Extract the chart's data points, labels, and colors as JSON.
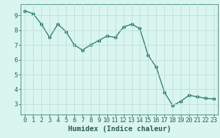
{
  "x": [
    0,
    1,
    2,
    3,
    4,
    5,
    6,
    7,
    8,
    9,
    10,
    11,
    12,
    13,
    14,
    15,
    16,
    17,
    18,
    19,
    20,
    21,
    22,
    23
  ],
  "y": [
    9.3,
    9.1,
    8.4,
    7.5,
    8.4,
    7.9,
    7.0,
    6.65,
    7.0,
    7.3,
    7.6,
    7.5,
    8.2,
    8.4,
    8.1,
    6.3,
    5.5,
    3.8,
    2.9,
    3.2,
    3.6,
    3.5,
    3.4,
    3.35
  ],
  "line_color": "#2e7d6e",
  "marker": "o",
  "markersize": 2.5,
  "linewidth": 1.0,
  "xlabel": "Humidex (Indice chaleur)",
  "xlim": [
    -0.5,
    23.5
  ],
  "ylim": [
    2.3,
    9.75
  ],
  "yticks": [
    3,
    4,
    5,
    6,
    7,
    8,
    9
  ],
  "xticks": [
    0,
    1,
    2,
    3,
    4,
    5,
    6,
    7,
    8,
    9,
    10,
    11,
    12,
    13,
    14,
    15,
    16,
    17,
    18,
    19,
    20,
    21,
    22,
    23
  ],
  "background_color": "#d9f5f0",
  "grid_color": "#c0ddd8",
  "spine_color": "#5a9a8a",
  "tick_color": "#2e5d50",
  "xlabel_fontsize": 7.5,
  "tick_fontsize": 6.5,
  "xlabel_fontweight": "bold"
}
